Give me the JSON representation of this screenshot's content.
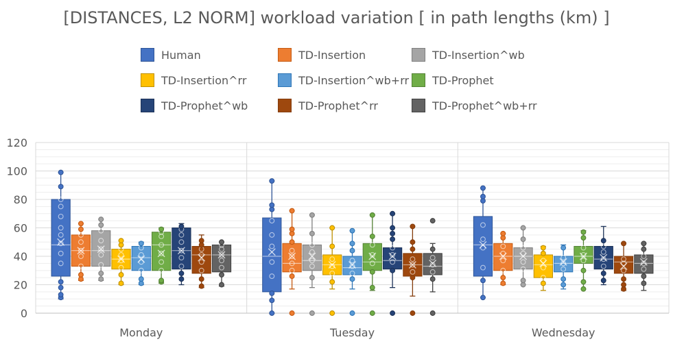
{
  "chart_data": {
    "type": "boxplot",
    "title": "[DISTANCES, L2 NORM] workload variation [ in path lengths (km) ]",
    "xlabel": "",
    "ylabel": "",
    "ylim": [
      0,
      120
    ],
    "yticks": [
      0,
      20,
      40,
      60,
      80,
      100,
      120
    ],
    "categories": [
      "Monday",
      "Tuesday",
      "Wednesday"
    ],
    "legend_position": "top",
    "series": [
      {
        "name": "Human",
        "color": "#4472C4",
        "stroke": "#2F5597",
        "data": [
          {
            "min": 10,
            "q1": 26,
            "median": 48,
            "q3": 80,
            "max": 99,
            "mean": 50,
            "points": [
              11,
              13,
              18,
              22,
              35,
              42,
              49,
              55,
              60,
              68,
              75,
              80,
              89,
              99
            ]
          },
          {
            "min": 0,
            "q1": 15,
            "median": 40,
            "q3": 67,
            "max": 93,
            "mean": 43,
            "points": [
              0,
              9,
              14,
              26,
              36,
              47,
              55,
              65,
              73,
              76,
              93
            ]
          },
          {
            "min": 11,
            "q1": 26,
            "median": 48,
            "q3": 68,
            "max": 88,
            "mean": 48,
            "points": [
              11,
              23,
              32,
              46,
              52,
              62,
              79,
              82,
              88
            ]
          }
        ]
      },
      {
        "name": "TD-Insertion",
        "color": "#ED7D31",
        "stroke": "#C55A11",
        "data": [
          {
            "min": 23,
            "q1": 33,
            "median": 44,
            "q3": 55,
            "max": 63,
            "mean": 44,
            "points": [
              24,
              27,
              33,
              40,
              44,
              50,
              55,
              59,
              63
            ]
          },
          {
            "min": 17,
            "q1": 29,
            "median": 35,
            "q3": 49,
            "max": 72,
            "mean": 40,
            "points": [
              0,
              26,
              30,
              35,
              40,
              44,
              50,
              56,
              59,
              72
            ]
          },
          {
            "min": 20,
            "q1": 30,
            "median": 40,
            "q3": 49,
            "max": 56,
            "mean": 40,
            "points": [
              21,
              25,
              30,
              37,
              42,
              47,
              53,
              56
            ]
          }
        ]
      },
      {
        "name": "TD-Insertion^wb",
        "color": "#A5A5A5",
        "stroke": "#7F7F7F",
        "data": [
          {
            "min": 23,
            "q1": 33,
            "median": 44,
            "q3": 58,
            "max": 66,
            "mean": 45,
            "points": [
              24,
              28,
              34,
              41,
              45,
              51,
              58,
              62,
              66
            ]
          },
          {
            "min": 18,
            "q1": 30,
            "median": 37,
            "q3": 48,
            "max": 69,
            "mean": 40,
            "points": [
              0,
              25,
              33,
              37,
              43,
              48,
              56,
              69
            ]
          },
          {
            "min": 20,
            "q1": 31,
            "median": 40,
            "q3": 46,
            "max": 60,
            "mean": 40,
            "points": [
              20,
              23,
              31,
              36,
              42,
              46,
              52,
              60
            ]
          }
        ]
      },
      {
        "name": "TD-Insertion^rr",
        "color": "#FFC000",
        "stroke": "#BF9000",
        "data": [
          {
            "min": 20,
            "q1": 31,
            "median": 38,
            "q3": 45,
            "max": 51,
            "mean": 38,
            "points": [
              21,
              27,
              32,
              37,
              41,
              45,
              48,
              51
            ]
          },
          {
            "min": 17,
            "q1": 27,
            "median": 34,
            "q3": 41,
            "max": 60,
            "mean": 34,
            "points": [
              0,
              22,
              28,
              33,
              38,
              47,
              60
            ]
          },
          {
            "min": 16,
            "q1": 25,
            "median": 34,
            "q3": 41,
            "max": 47,
            "mean": 35,
            "points": [
              21,
              25,
              32,
              37,
              42,
              46
            ]
          }
        ]
      },
      {
        "name": "TD-Insertion^wb+rr",
        "color": "#5B9BD5",
        "stroke": "#2E75B6",
        "data": [
          {
            "min": 20,
            "q1": 30,
            "median": 39,
            "q3": 47,
            "max": 50,
            "mean": 38,
            "points": [
              21,
              24,
              30,
              36,
              41,
              46,
              49
            ]
          },
          {
            "min": 17,
            "q1": 27,
            "median": 32,
            "q3": 40,
            "max": 58,
            "mean": 34,
            "points": [
              0,
              24,
              28,
              33,
              37,
              44,
              49,
              58
            ]
          },
          {
            "min": 17,
            "q1": 29,
            "median": 35,
            "q3": 40,
            "max": 48,
            "mean": 36,
            "points": [
              20,
              24,
              31,
              35,
              39,
              46
            ]
          }
        ]
      },
      {
        "name": "TD-Prophet",
        "color": "#70AD47",
        "stroke": "#548235",
        "data": [
          {
            "min": 21,
            "q1": 30,
            "median": 48,
            "q3": 57,
            "max": 60,
            "mean": 42,
            "points": [
              22,
              23,
              30,
              36,
              42,
              48,
              54,
              57,
              59
            ]
          },
          {
            "min": 16,
            "q1": 30,
            "median": 36,
            "q3": 49,
            "max": 69,
            "mean": 40,
            "points": [
              0,
              18,
              29,
              35,
              41,
              48,
              54,
              69
            ]
          },
          {
            "min": 17,
            "q1": 35,
            "median": 40,
            "q3": 47,
            "max": 58,
            "mean": 40,
            "points": [
              17,
              22,
              30,
              37,
              41,
              46,
              53,
              57
            ]
          }
        ]
      },
      {
        "name": "TD-Prophet^wb",
        "color": "#264478",
        "stroke": "#1B3157",
        "data": [
          {
            "min": 20,
            "q1": 31,
            "median": 44,
            "q3": 60,
            "max": 63,
            "mean": 44,
            "points": [
              24,
              28,
              33,
              39,
              44,
              50,
              55,
              59,
              61
            ]
          },
          {
            "min": 18,
            "q1": 31,
            "median": 37,
            "q3": 46,
            "max": 70,
            "mean": 40,
            "points": [
              0,
              30,
              36,
              41,
              46,
              52,
              56,
              60,
              70
            ]
          },
          {
            "min": 20,
            "q1": 31,
            "median": 38,
            "q3": 47,
            "max": 61,
            "mean": 39,
            "points": [
              23,
              28,
              33,
              38,
              43,
              47,
              51
            ]
          }
        ]
      },
      {
        "name": "TD-Prophet^rr",
        "color": "#9E480E",
        "stroke": "#843C0C",
        "data": [
          {
            "min": 18,
            "q1": 28,
            "median": 41,
            "q3": 47,
            "max": 55,
            "mean": 39,
            "points": [
              19,
              24,
              30,
              36,
              41,
              45,
              48,
              51
            ]
          },
          {
            "min": 12,
            "q1": 26,
            "median": 34,
            "q3": 42,
            "max": 61,
            "mean": 34,
            "points": [
              0,
              25,
              29,
              34,
              38,
              45,
              50,
              61
            ]
          },
          {
            "min": 16,
            "q1": 28,
            "median": 36,
            "q3": 40,
            "max": 49,
            "mean": 33,
            "points": [
              17,
              20,
              24,
              30,
              35,
              38,
              49
            ]
          }
        ]
      },
      {
        "name": "TD-Prophet^wb+rr",
        "color": "#636363",
        "stroke": "#404040",
        "data": [
          {
            "min": 19,
            "q1": 29,
            "median": 41,
            "q3": 48,
            "max": 50,
            "mean": 41,
            "points": [
              20,
              27,
              32,
              37,
              41,
              45,
              48,
              50
            ]
          },
          {
            "min": 15,
            "q1": 27,
            "median": 33,
            "q3": 42,
            "max": 49,
            "mean": 35,
            "points": [
              0,
              24,
              29,
              34,
              39,
              45,
              65
            ]
          },
          {
            "min": 16,
            "q1": 28,
            "median": 35,
            "q3": 41,
            "max": 49,
            "mean": 36,
            "points": [
              21,
              26,
              31,
              35,
              40,
              45,
              49
            ]
          }
        ]
      }
    ]
  }
}
